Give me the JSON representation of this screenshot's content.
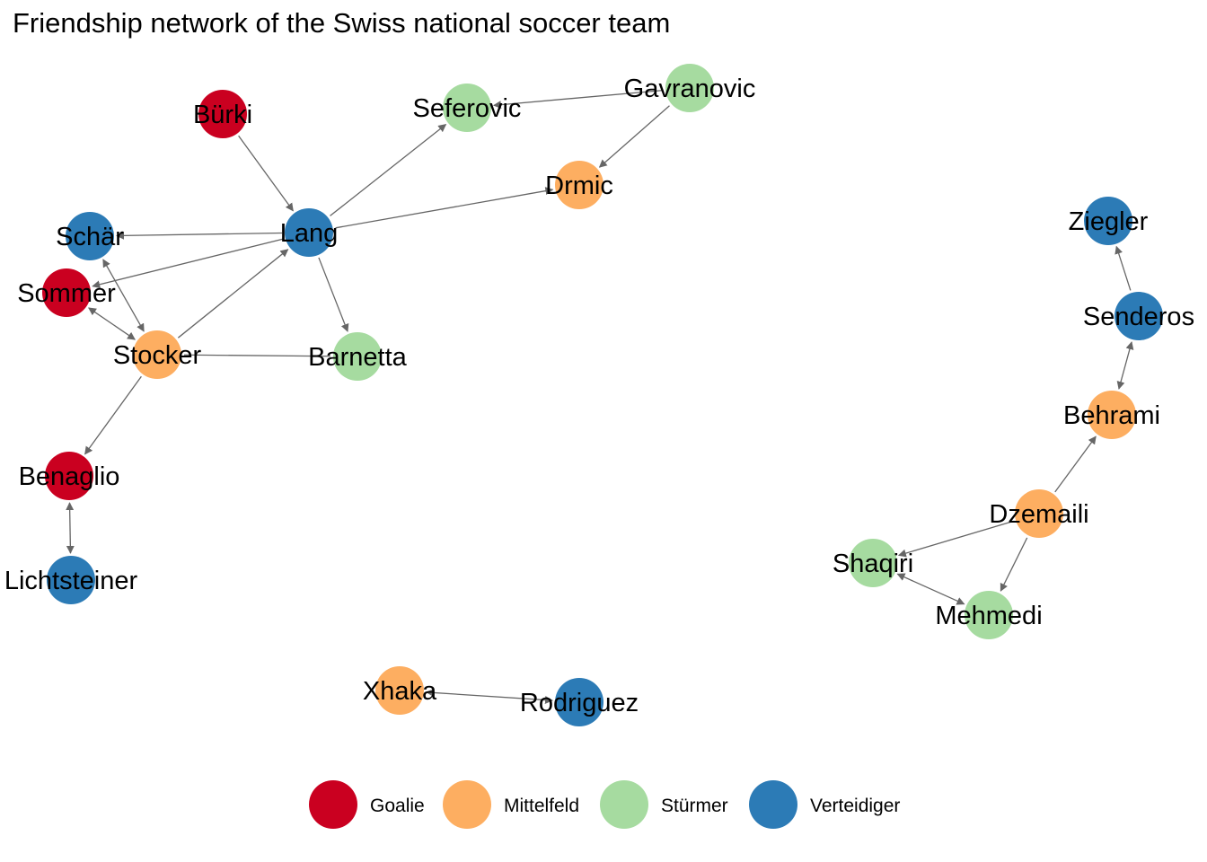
{
  "title": "Friendship network of the Swiss national soccer team",
  "colors": {
    "Goalie": "#ca0020",
    "Mittelfeld": "#fdae61",
    "Stürmer": "#a6dba0",
    "Verteidiger": "#2c7bb6",
    "edge": "#666666"
  },
  "legend": [
    {
      "label": "Goalie",
      "group": "Goalie"
    },
    {
      "label": "Mittelfeld",
      "group": "Mittelfeld"
    },
    {
      "label": "Stürmer",
      "group": "Stürmer"
    },
    {
      "label": "Verteidiger",
      "group": "Verteidiger"
    }
  ],
  "nodes": [
    {
      "id": "Bürki",
      "group": "Goalie"
    },
    {
      "id": "Seferovic",
      "group": "Stürmer"
    },
    {
      "id": "Gavranovic",
      "group": "Stürmer"
    },
    {
      "id": "Drmic",
      "group": "Mittelfeld"
    },
    {
      "id": "Lang",
      "group": "Verteidiger"
    },
    {
      "id": "Schär",
      "group": "Verteidiger"
    },
    {
      "id": "Sommer",
      "group": "Goalie"
    },
    {
      "id": "Stocker",
      "group": "Mittelfeld"
    },
    {
      "id": "Barnetta",
      "group": "Stürmer"
    },
    {
      "id": "Benaglio",
      "group": "Goalie"
    },
    {
      "id": "Lichtsteiner",
      "group": "Verteidiger"
    },
    {
      "id": "Xhaka",
      "group": "Mittelfeld"
    },
    {
      "id": "Rodriguez",
      "group": "Verteidiger"
    },
    {
      "id": "Ziegler",
      "group": "Verteidiger"
    },
    {
      "id": "Senderos",
      "group": "Verteidiger"
    },
    {
      "id": "Behrami",
      "group": "Mittelfeld"
    },
    {
      "id": "Dzemaili",
      "group": "Mittelfeld"
    },
    {
      "id": "Shaqiri",
      "group": "Stürmer"
    },
    {
      "id": "Mehmedi",
      "group": "Stürmer"
    }
  ],
  "edges": [
    {
      "from": "Bürki",
      "to": "Lang",
      "mutual": false
    },
    {
      "from": "Lang",
      "to": "Seferovic",
      "mutual": false
    },
    {
      "from": "Gavranovic",
      "to": "Seferovic",
      "mutual": false
    },
    {
      "from": "Gavranovic",
      "to": "Drmic",
      "mutual": false
    },
    {
      "from": "Lang",
      "to": "Drmic",
      "mutual": false
    },
    {
      "from": "Lang",
      "to": "Schär",
      "mutual": false
    },
    {
      "from": "Lang",
      "to": "Sommer",
      "mutual": false
    },
    {
      "from": "Lang",
      "to": "Barnetta",
      "mutual": false
    },
    {
      "from": "Stocker",
      "to": "Lang",
      "mutual": false
    },
    {
      "from": "Schär",
      "to": "Stocker",
      "mutual": true
    },
    {
      "from": "Sommer",
      "to": "Stocker",
      "mutual": true
    },
    {
      "from": "Stocker",
      "to": "Barnetta",
      "mutual": false,
      "arrow": false
    },
    {
      "from": "Stocker",
      "to": "Benaglio",
      "mutual": false
    },
    {
      "from": "Benaglio",
      "to": "Lichtsteiner",
      "mutual": true
    },
    {
      "from": "Rodriguez",
      "to": "Xhaka",
      "mutual": true
    },
    {
      "from": "Senderos",
      "to": "Ziegler",
      "mutual": false
    },
    {
      "from": "Behrami",
      "to": "Senderos",
      "mutual": true
    },
    {
      "from": "Dzemaili",
      "to": "Behrami",
      "mutual": false
    },
    {
      "from": "Dzemaili",
      "to": "Shaqiri",
      "mutual": false
    },
    {
      "from": "Dzemaili",
      "to": "Mehmedi",
      "mutual": false
    },
    {
      "from": "Shaqiri",
      "to": "Mehmedi",
      "mutual": true
    }
  ]
}
